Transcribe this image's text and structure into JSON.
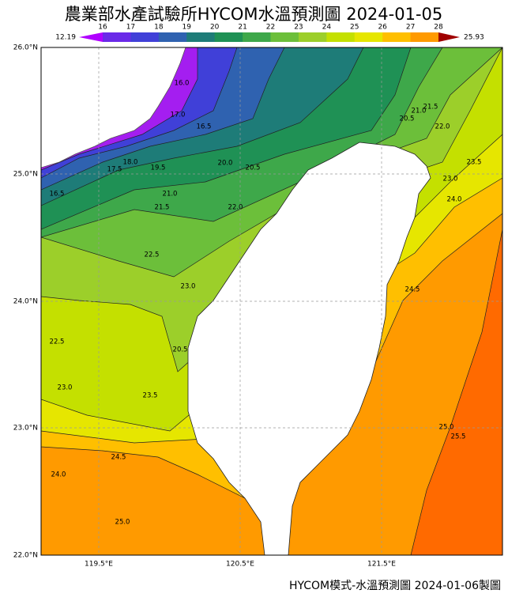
{
  "header": {
    "title": "農業部水產試驗所HYCOM水溫預測圖 2024-01-05"
  },
  "colorbar": {
    "min_label": 12.19,
    "max_label": 25.93,
    "ticks": [
      16,
      17,
      18,
      19,
      20,
      21,
      22,
      23,
      24,
      25,
      26,
      27,
      28
    ]
  },
  "axes": {
    "y_labels": [
      "26.0°N",
      "25.0°N",
      "24.0°N",
      "23.0°N",
      "22.0°N"
    ],
    "x_labels": [
      "119.5°E",
      "120.5°E",
      "121.5°E"
    ]
  },
  "contour_labels": [
    "16.5",
    "16.0",
    "17.0",
    "16.5",
    "17.5",
    "18.0",
    "19.5",
    "20.0",
    "20.5",
    "21.0",
    "21.5",
    "22.0",
    "22.5",
    "23.0",
    "22.5",
    "23.0",
    "23.5",
    "20.5",
    "24.5",
    "24.0",
    "25.0",
    "20.5",
    "21.0",
    "21.5",
    "22.0",
    "23.5",
    "23.0",
    "24.0",
    "24.5",
    "25.0",
    "25.5"
  ],
  "footer": {
    "caption": "HYCOM模式-水溫預測圖 2024-01-06製圖"
  }
}
